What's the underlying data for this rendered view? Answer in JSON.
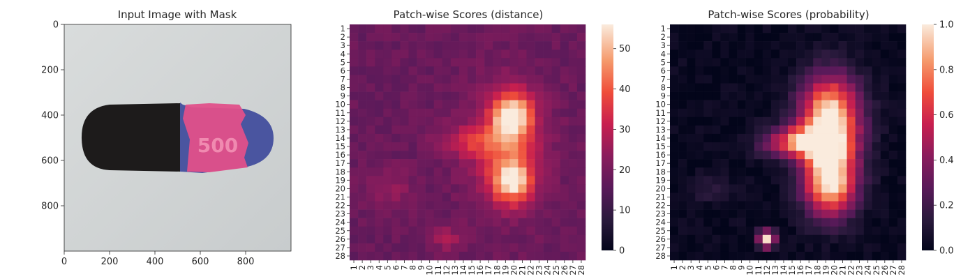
{
  "panels": [
    {
      "title": "Input Image with Mask",
      "type": "image",
      "xticks": [
        0,
        200,
        400,
        600,
        800
      ],
      "yticks": [
        0,
        200,
        400,
        600,
        800
      ],
      "xlim": [
        0,
        1000
      ],
      "ylim": [
        1000,
        0
      ],
      "image_label": "500",
      "colors": {
        "background": "#cfd3d4",
        "capsule_dark": "#1c1a1a",
        "capsule_pink": "#e0508a",
        "capsule_blue": "#4a55a0"
      }
    },
    {
      "title": "Patch-wise Scores (distance)",
      "type": "heatmap",
      "grid_size": 28,
      "colorbar_ticks": [
        0,
        10,
        20,
        30,
        40,
        50
      ],
      "vmin": 0,
      "vmax": 56,
      "colormap": "rocket"
    },
    {
      "title": "Patch-wise Scores (probability)",
      "type": "heatmap",
      "grid_size": 28,
      "colorbar_ticks": [
        "0.0",
        "0.2",
        "0.4",
        "0.6",
        "0.8",
        "1.0"
      ],
      "vmin": 0,
      "vmax": 1,
      "colormap": "rocket"
    }
  ],
  "chart_data": [
    {
      "type": "image",
      "title": "Input Image with Mask",
      "xlim": [
        0,
        1000
      ],
      "ylim": [
        1000,
        0
      ],
      "xticks": [
        0,
        200,
        400,
        600,
        800
      ],
      "yticks": [
        0,
        200,
        400,
        600,
        800
      ]
    },
    {
      "type": "heatmap",
      "title": "Patch-wise Scores (distance)",
      "rows": 28,
      "cols": 28,
      "tick_labels": [
        "1",
        "2",
        "3",
        "4",
        "5",
        "6",
        "7",
        "8",
        "9",
        "10",
        "11",
        "12",
        "13",
        "14",
        "15",
        "16",
        "17",
        "18",
        "19",
        "20",
        "21",
        "22",
        "23",
        "24",
        "25",
        "26",
        "27",
        "28"
      ],
      "vmin": 0,
      "vmax": 56,
      "background": 18,
      "blobs": [
        {
          "row": 11.5,
          "col": 19.8,
          "sr": 2.0,
          "sc": 1.6,
          "amp": 36
        },
        {
          "row": 19.0,
          "col": 19.8,
          "sr": 1.8,
          "sc": 1.6,
          "amp": 34
        },
        {
          "row": 15.0,
          "col": 19.0,
          "sr": 5.0,
          "sc": 3.2,
          "amp": 14
        },
        {
          "row": 14.5,
          "col": 15.0,
          "sr": 1.3,
          "sc": 2.8,
          "amp": 12
        },
        {
          "row": 20.0,
          "col": 5.0,
          "sr": 1.6,
          "sc": 2.0,
          "amp": 7
        },
        {
          "row": 26.0,
          "col": 12.0,
          "sr": 1.0,
          "sc": 1.2,
          "amp": 9
        }
      ]
    },
    {
      "type": "heatmap",
      "title": "Patch-wise Scores (probability)",
      "rows": 28,
      "cols": 28,
      "tick_labels": [
        "1",
        "2",
        "3",
        "4",
        "5",
        "6",
        "7",
        "8",
        "9",
        "10",
        "11",
        "12",
        "13",
        "14",
        "15",
        "16",
        "17",
        "18",
        "19",
        "20",
        "21",
        "22",
        "23",
        "24",
        "25",
        "26",
        "27",
        "28"
      ],
      "vmin": 0,
      "vmax": 1,
      "background": 0.02,
      "blobs": [
        {
          "row": 11.5,
          "col": 19.5,
          "sr": 3.5,
          "sc": 2.5,
          "amp": 1.0
        },
        {
          "row": 19.0,
          "col": 19.5,
          "sr": 3.0,
          "sc": 2.2,
          "amp": 1.0
        },
        {
          "row": 14.5,
          "col": 16.0,
          "sr": 1.3,
          "sc": 3.0,
          "amp": 0.7
        },
        {
          "row": 26.0,
          "col": 12.0,
          "sr": 0.7,
          "sc": 0.7,
          "amp": 0.95
        },
        {
          "row": 20.0,
          "col": 5.0,
          "sr": 1.2,
          "sc": 2.0,
          "amp": 0.12
        }
      ]
    }
  ]
}
